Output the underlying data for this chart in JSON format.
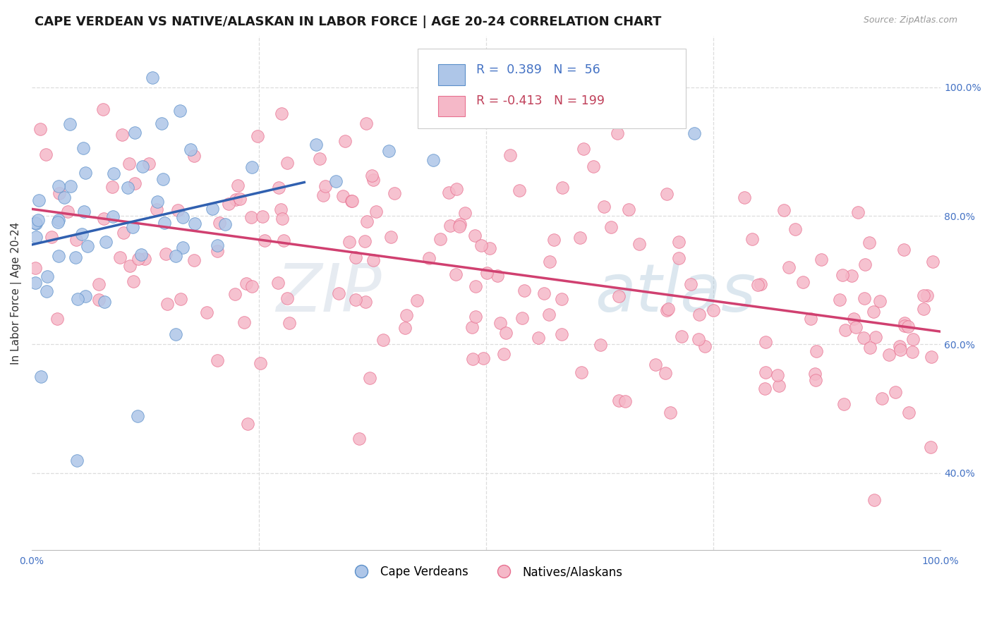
{
  "title": "CAPE VERDEAN VS NATIVE/ALASKAN IN LABOR FORCE | AGE 20-24 CORRELATION CHART",
  "source": "Source: ZipAtlas.com",
  "ylabel": "In Labor Force | Age 20-24",
  "xlim": [
    0.0,
    1.0
  ],
  "ylim": [
    0.28,
    1.08
  ],
  "yticks_right": [
    0.4,
    0.6,
    0.8,
    1.0
  ],
  "ytick_labels_right": [
    "40.0%",
    "60.0%",
    "80.0%",
    "100.0%"
  ],
  "blue_fill": "#aec6e8",
  "blue_edge": "#5b8fc9",
  "pink_fill": "#f5b8c8",
  "pink_edge": "#e87090",
  "blue_line_color": "#3060b0",
  "pink_line_color": "#d04070",
  "blue_R": 0.389,
  "blue_N": 56,
  "pink_R": -0.413,
  "pink_N": 199,
  "legend_blue_label": "Cape Verdeans",
  "legend_pink_label": "Natives/Alaskans",
  "watermark_text": "ZIPatlas",
  "watermark_color": "#c5d8ea",
  "background_color": "#ffffff",
  "grid_color": "#dddddd",
  "title_fontsize": 13,
  "tick_fontsize": 10,
  "right_tick_color": "#4472c4",
  "legend_R_color_blue": "#4472c4",
  "legend_R_color_pink": "#c0405a"
}
